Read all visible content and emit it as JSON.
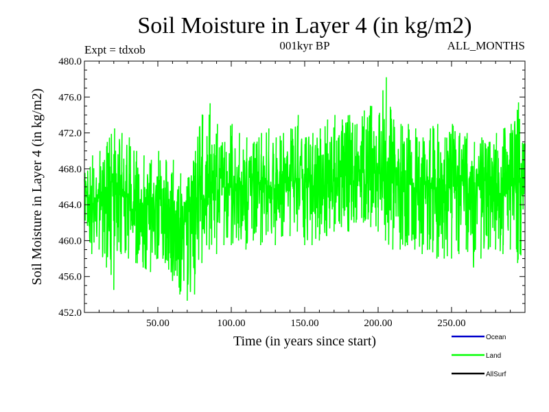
{
  "chart_data": {
    "type": "line",
    "title": "Soil Moisture in Layer 4 (in kg/m2)",
    "subtitle": "001kyr BP",
    "left_note": "Expt = tdxob",
    "right_note": "ALL_MONTHS",
    "xlabel": "Time (in years since start)",
    "ylabel": "Soil Moisture in Layer 4 (in kg/m2)",
    "xlim": [
      0,
      300
    ],
    "ylim": [
      452,
      480
    ],
    "x_ticks": [
      50,
      100,
      150,
      200,
      250
    ],
    "x_tick_labels": [
      "50.00",
      "100.00",
      "150.00",
      "200.00",
      "250.00"
    ],
    "y_ticks": [
      452,
      456,
      460,
      464,
      468,
      472,
      476,
      480
    ],
    "y_tick_labels": [
      "452.0",
      "456.0",
      "460.0",
      "464.0",
      "468.0",
      "472.0",
      "476.0",
      "480.0"
    ],
    "grid": false,
    "legend_placement": "bottom-right",
    "legend": [
      {
        "label": "Ocean",
        "color": "#0000cc"
      },
      {
        "label": "Land",
        "color": "#00ff00"
      },
      {
        "label": "AllSurf",
        "color": "#000000"
      }
    ],
    "series": [
      {
        "name": "Land",
        "color": "#00ff00",
        "x": [
          0,
          5,
          10,
          15,
          20,
          25,
          30,
          35,
          40,
          45,
          50,
          55,
          60,
          65,
          70,
          75,
          80,
          85,
          90,
          95,
          100,
          105,
          110,
          115,
          120,
          125,
          130,
          135,
          140,
          145,
          150,
          155,
          160,
          165,
          170,
          175,
          180,
          185,
          190,
          195,
          200,
          205,
          210,
          215,
          220,
          225,
          230,
          235,
          240,
          245,
          250,
          255,
          260,
          265,
          270,
          275,
          280,
          285,
          290,
          295,
          300
        ],
        "mean": [
          465,
          464.5,
          465,
          465.5,
          465,
          465.5,
          465,
          465,
          464,
          464,
          464.5,
          464,
          463.5,
          462,
          462.5,
          463.5,
          465,
          466,
          466,
          465.5,
          466,
          466.5,
          466,
          466,
          466.5,
          466.5,
          466,
          466.5,
          466.5,
          467,
          466,
          466,
          466.5,
          467,
          467,
          467,
          467.5,
          467.5,
          468,
          468,
          467.5,
          467,
          466.5,
          467,
          466.5,
          466,
          466,
          466.5,
          466,
          465.5,
          466,
          466.5,
          466,
          466,
          466,
          466,
          466,
          466.5,
          466,
          466.5,
          466
        ],
        "max": [
          468,
          469.5,
          470,
          471,
          472.5,
          472,
          471.5,
          470,
          469.5,
          469,
          470,
          469,
          469,
          467.5,
          467,
          470,
          474,
          475.3,
          473,
          471,
          473,
          472,
          471.5,
          471,
          472,
          472.5,
          471.5,
          472,
          472.5,
          474,
          471.5,
          472,
          472.5,
          473.5,
          474,
          473.5,
          474,
          473,
          474.5,
          475,
          474,
          478.2,
          473.5,
          473,
          473,
          472.5,
          471.5,
          472.5,
          473,
          471.5,
          473,
          472,
          472,
          471,
          471.5,
          471,
          472,
          472.5,
          473,
          475.4,
          471
        ],
        "min": [
          455,
          458.5,
          459,
          457,
          454.5,
          458.5,
          458,
          457.5,
          457,
          456.5,
          458,
          457.5,
          455.5,
          454,
          453.3,
          454,
          457.5,
          459,
          458.5,
          459.5,
          459.5,
          460,
          459,
          460,
          459.5,
          461,
          459.5,
          460.5,
          460.5,
          461,
          459.5,
          459.5,
          460,
          460.5,
          461,
          461.5,
          461,
          462,
          462,
          461.5,
          461,
          460,
          459,
          459,
          459.5,
          459,
          458.5,
          459,
          458,
          458,
          458,
          458.5,
          459,
          457,
          458,
          459,
          459,
          458.5,
          459,
          457.5,
          458
        ]
      }
    ]
  }
}
